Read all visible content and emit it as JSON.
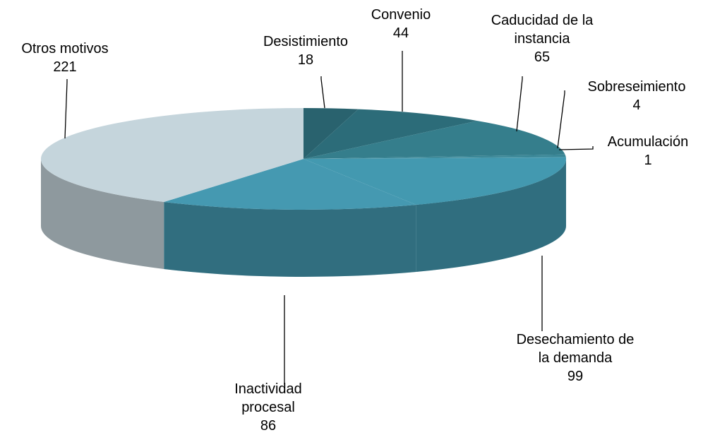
{
  "chart_data": {
    "type": "pie3d",
    "categories": [
      "Desistimiento",
      "Convenio",
      "Caducidad de la instancia",
      "Sobreseimiento",
      "Acumulación",
      "Desechamiento de la demanda",
      "Inactividad procesal",
      "Otros motivos"
    ],
    "values": [
      18,
      44,
      65,
      4,
      1,
      99,
      86,
      221
    ],
    "colors": [
      "#29626e",
      "#2c6c79",
      "#357e8c",
      "#3a8797",
      "#3d8e9e",
      "#4399b0",
      "#4599b1",
      "#c5d5dc"
    ]
  }
}
